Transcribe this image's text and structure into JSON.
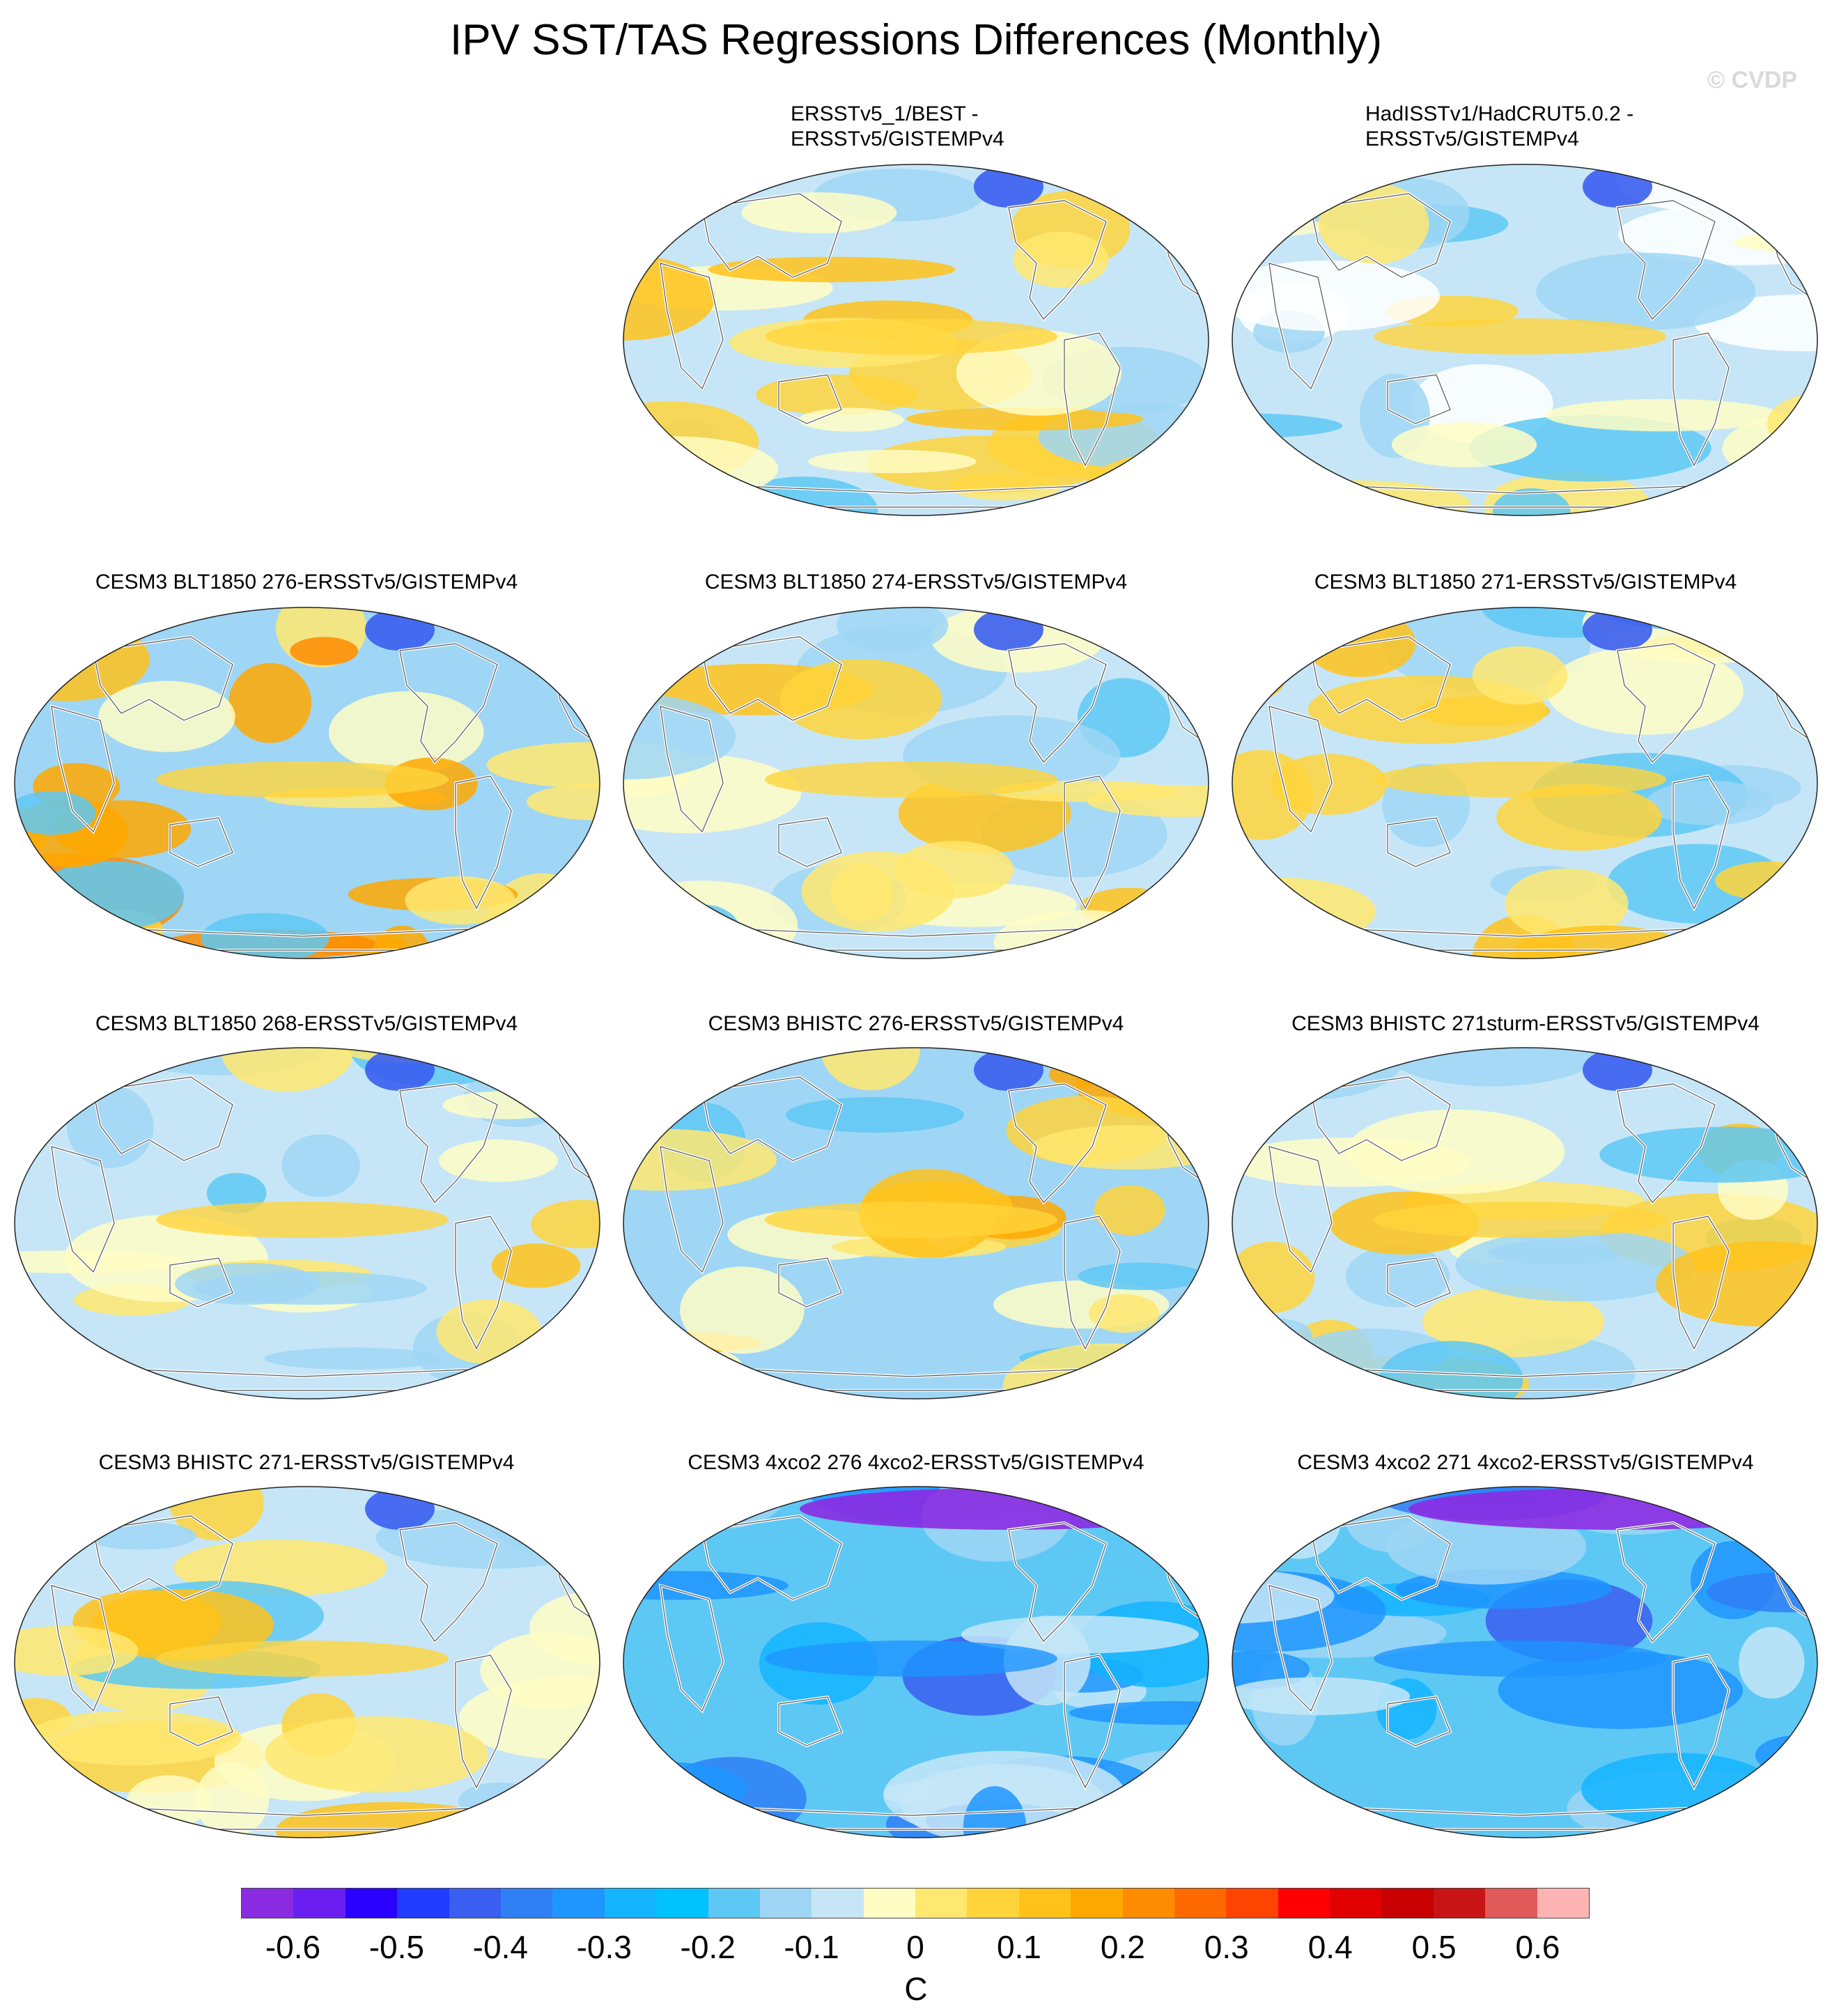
{
  "title": "IPV SST/TAS Regressions Differences (Monthly)",
  "watermark": "© CVDP",
  "panels": [
    {
      "id": "p1",
      "title_lines": [
        "ERSSTv5_1/BEST -",
        "ERSSTv5/GISTEMPv4"
      ],
      "scheme": "mixed"
    },
    {
      "id": "p2",
      "title_lines": [
        "HadISSTv1/HadCRUT5.0.2 -",
        "ERSSTv5/GISTEMPv4"
      ],
      "scheme": "mixed-masked"
    },
    {
      "id": "p3",
      "title_lines": [
        "CESM3 BLT1850 276-ERSSTv5/GISTEMPv4"
      ],
      "scheme": "warm"
    },
    {
      "id": "p4",
      "title_lines": [
        "CESM3 BLT1850 274-ERSSTv5/GISTEMPv4"
      ],
      "scheme": "mixed"
    },
    {
      "id": "p5",
      "title_lines": [
        "CESM3 BLT1850 271-ERSSTv5/GISTEMPv4"
      ],
      "scheme": "mixed"
    },
    {
      "id": "p6",
      "title_lines": [
        "CESM3 BLT1850 268-ERSSTv5/GISTEMPv4"
      ],
      "scheme": "mixed"
    },
    {
      "id": "p7",
      "title_lines": [
        "CESM3 BHISTC 276-ERSSTv5/GISTEMPv4"
      ],
      "scheme": "warm"
    },
    {
      "id": "p8",
      "title_lines": [
        "CESM3 BHISTC 271sturm-ERSSTv5/GISTEMPv4"
      ],
      "scheme": "mixed"
    },
    {
      "id": "p9",
      "title_lines": [
        "CESM3 BHISTC 271-ERSSTv5/GISTEMPv4"
      ],
      "scheme": "mixed"
    },
    {
      "id": "p10",
      "title_lines": [
        "CESM3 4xco2 276 4xco2-ERSSTv5/GISTEMPv4"
      ],
      "scheme": "cold"
    },
    {
      "id": "p11",
      "title_lines": [
        "CESM3 4xco2 271 4xco2-ERSSTv5/GISTEMPv4"
      ],
      "scheme": "cold"
    }
  ],
  "colorbar": {
    "units": "C",
    "colors": [
      "#8a2be2",
      "#6a1ef0",
      "#2a00ff",
      "#1f3cff",
      "#3a5ef0",
      "#2f7ff5",
      "#1e95ff",
      "#14b4ff",
      "#00c2ff",
      "#5ec8f5",
      "#9fd6f5",
      "#c6e6f7",
      "#fffdc4",
      "#ffe870",
      "#ffd43b",
      "#ffc21a",
      "#ffa800",
      "#ff8c00",
      "#ff6a00",
      "#ff4400",
      "#ff0000",
      "#e00000",
      "#c80000",
      "#c81414",
      "#e05a5a",
      "#ffb4b4"
    ],
    "labels": [
      "-0.6",
      "-0.5",
      "-0.4",
      "-0.3",
      "-0.2",
      "-0.1",
      "0",
      "0.1",
      "0.2",
      "0.3",
      "0.4",
      "0.5",
      "0.6"
    ]
  }
}
